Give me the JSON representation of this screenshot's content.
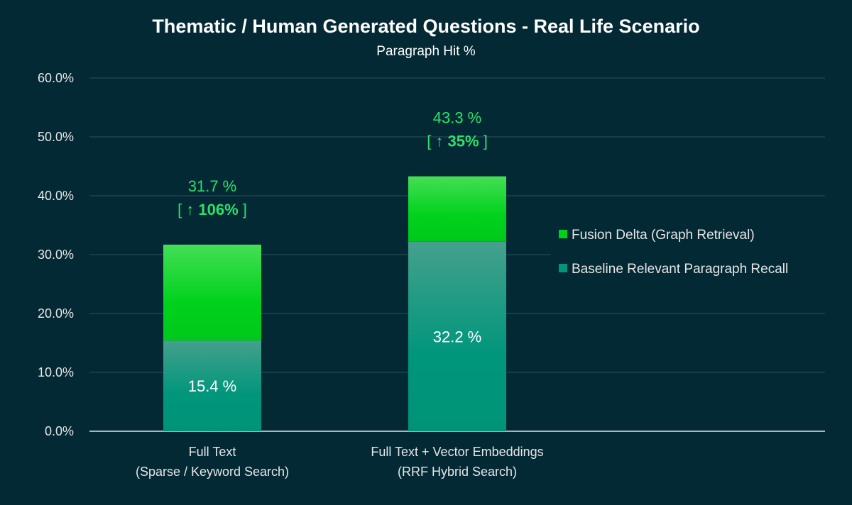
{
  "chart_data": {
    "type": "bar",
    "stacked": true,
    "title": "Thematic / Human Generated Questions - Real Life Scenario",
    "subtitle": "Paragraph Hit %",
    "xlabel": "",
    "ylabel": "",
    "ylim": [
      0,
      60
    ],
    "yticks": [
      "0.0%",
      "10.0%",
      "20.0%",
      "30.0%",
      "40.0%",
      "50.0%",
      "60.0%"
    ],
    "grid": true,
    "legend_position": "right",
    "categories": [
      [
        "Full Text",
        "(Sparse / Keyword Search)"
      ],
      [
        "Full Text + Vector Embeddings",
        "(RRF Hybrid Search)"
      ]
    ],
    "series": [
      {
        "name": "Baseline Relevant Paragraph Recall",
        "values": [
          15.4,
          32.2
        ],
        "color": "#00967c"
      },
      {
        "name": "Fusion Delta (Graph Retrieval)",
        "values": [
          16.3,
          11.1
        ],
        "color": "#00d21c"
      }
    ],
    "data_labels": {
      "baseline": [
        "15.4 %",
        "32.2 %"
      ],
      "total": [
        "31.7 %",
        "43.3 %"
      ],
      "increase": [
        "[ ↑ 106% ]",
        "[ ↑ 35% ]"
      ]
    },
    "legend_order": [
      "Fusion Delta (Graph Retrieval)",
      "Baseline Relevant Paragraph Recall"
    ],
    "background": "#032935"
  }
}
